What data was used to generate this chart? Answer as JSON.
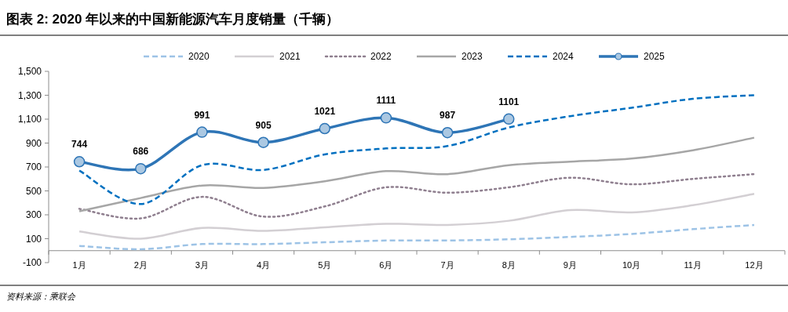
{
  "chart_data": {
    "type": "line",
    "title": "图表 2: 2020 年以来的中国新能源汽车月度销量（千辆）",
    "annotations": [
      "资料来源：乘联会"
    ],
    "categories": [
      "1月",
      "2月",
      "3月",
      "4月",
      "5月",
      "6月",
      "7月",
      "8月",
      "9月",
      "10月",
      "11月",
      "12月"
    ],
    "ylim": [
      -100,
      1500
    ],
    "yticks": [
      -100,
      100,
      300,
      500,
      700,
      900,
      {
        "value": 1100,
        "label": "1,100"
      },
      {
        "value": 1300,
        "label": "1,300"
      },
      {
        "value": 1500,
        "label": "1,500"
      }
    ],
    "legend": "top",
    "grid": false,
    "series": [
      {
        "name": "2020",
        "color": "#9dc3e6",
        "line_style": "dashed",
        "values": [
          40,
          12,
          55,
          55,
          70,
          85,
          85,
          95,
          115,
          140,
          180,
          215
        ]
      },
      {
        "name": "2021",
        "color": "#d3cfd3",
        "line_style": "solid",
        "values": [
          160,
          100,
          190,
          165,
          195,
          225,
          215,
          250,
          340,
          320,
          380,
          475
        ]
      },
      {
        "name": "2022",
        "color": "#8f7f8f",
        "line_style": "dotted",
        "values": [
          350,
          270,
          450,
          285,
          370,
          530,
          485,
          530,
          610,
          555,
          600,
          640
        ]
      },
      {
        "name": "2023",
        "color": "#a6a6a6",
        "line_style": "solid",
        "values": [
          330,
          440,
          545,
          525,
          580,
          665,
          640,
          715,
          745,
          770,
          840,
          945
        ]
      },
      {
        "name": "2024",
        "color": "#0070c0",
        "line_style": "dashed",
        "values": [
          670,
          390,
          715,
          675,
          805,
          855,
          875,
          1030,
          1125,
          1195,
          1270,
          1300
        ]
      },
      {
        "name": "2025",
        "color": "#2e75b6",
        "line_style": "solid",
        "marker": "circle",
        "values": [
          744,
          686,
          991,
          905,
          1021,
          1111,
          987,
          1101,
          null,
          null,
          null,
          null
        ],
        "value_labels": [
          "744",
          "686",
          "991",
          "905",
          "1021",
          "1111",
          "987",
          "1101",
          null,
          null,
          null,
          null
        ]
      }
    ]
  }
}
